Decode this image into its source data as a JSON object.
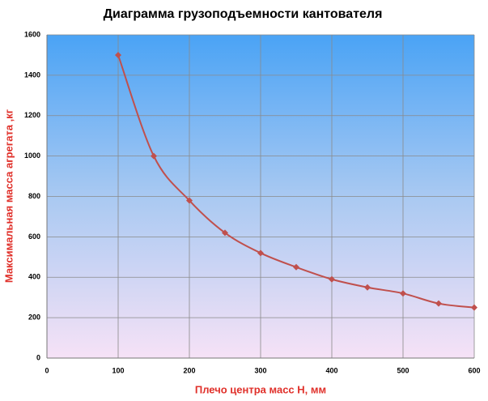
{
  "chart_data": {
    "type": "line",
    "title": "Диаграмма грузоподъемности кантователя",
    "x_label": "Плечо  центра масс Н, мм",
    "y_label": "Максимальная  масса агрегата ,кг",
    "x": [
      100,
      150,
      200,
      250,
      300,
      350,
      400,
      450,
      500,
      550,
      600
    ],
    "series": [
      {
        "name": "Максимальная масса",
        "color": "#c0504d",
        "values": [
          1500,
          1000,
          780,
          620,
          520,
          450,
          390,
          350,
          320,
          270,
          250
        ]
      }
    ],
    "xlim": [
      0,
      600
    ],
    "xticks": [
      0,
      100,
      200,
      300,
      400,
      500,
      600
    ],
    "ylim": [
      0,
      1600
    ],
    "yticks": [
      0,
      200,
      400,
      600,
      800,
      1000,
      1200,
      1400,
      1600
    ],
    "grid": true,
    "smooth": true
  }
}
